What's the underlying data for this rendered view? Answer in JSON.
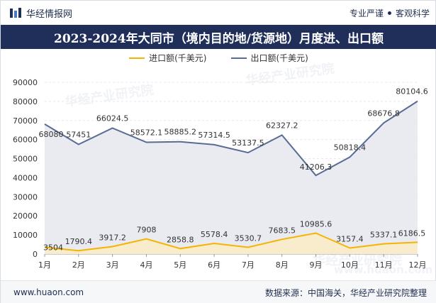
{
  "header": {
    "brand": "华经情报网",
    "tag1": "专业严谨",
    "tag2": "客观科学"
  },
  "title": "2023-2024年大同市（境内目的地/货源地）月度进、出口额",
  "watermark": {
    "text1": "华经产业研究院",
    "text2": "www.huaon.com"
  },
  "footer": {
    "website": "www.huaon.com",
    "source": "数据来源：中国海关，华经产业研究院整理"
  },
  "colors": {
    "import": "#f5b400",
    "export": "#5a6b94",
    "title_bg": "#1f2f5a"
  },
  "chart_data": {
    "type": "area",
    "categories": [
      "1月",
      "2月",
      "3月",
      "4月",
      "5月",
      "6月",
      "7月",
      "8月",
      "9月",
      "10月",
      "11月",
      "12月"
    ],
    "series": [
      {
        "name": "进口额(千美元)",
        "values": [
          3504,
          1790.4,
          3917.2,
          7908,
          2858.8,
          5578.4,
          3530.7,
          7683.5,
          10985.6,
          3157.4,
          5337.1,
          6186.5
        ],
        "labels": [
          "3504",
          "1790.4",
          "3917.2",
          "7908",
          "2858.8",
          "5578.4",
          "3530.7",
          "7683.5",
          "10985.6",
          "3157.4",
          "5337.1",
          "6186.5"
        ]
      },
      {
        "name": "出口额(千美元)",
        "values": [
          68080,
          57451,
          66024.5,
          58572.1,
          58885.2,
          57314.5,
          53137.5,
          62327.2,
          41206.3,
          50818.4,
          68676.8,
          80104.6
        ],
        "labels": [
          "68080",
          "57451",
          "66024.5",
          "58572.1",
          "58885.2",
          "57314.5",
          "53137.5",
          "62327.2",
          "41206.3",
          "50818.4",
          "68676.8",
          "80104.6"
        ]
      }
    ],
    "yticks": [
      "0",
      "10000",
      "20000",
      "30000",
      "40000",
      "50000",
      "60000",
      "70000",
      "80000",
      "90000"
    ],
    "ylim": [
      0,
      90000
    ],
    "grid": true,
    "legend_position": "top-center"
  }
}
